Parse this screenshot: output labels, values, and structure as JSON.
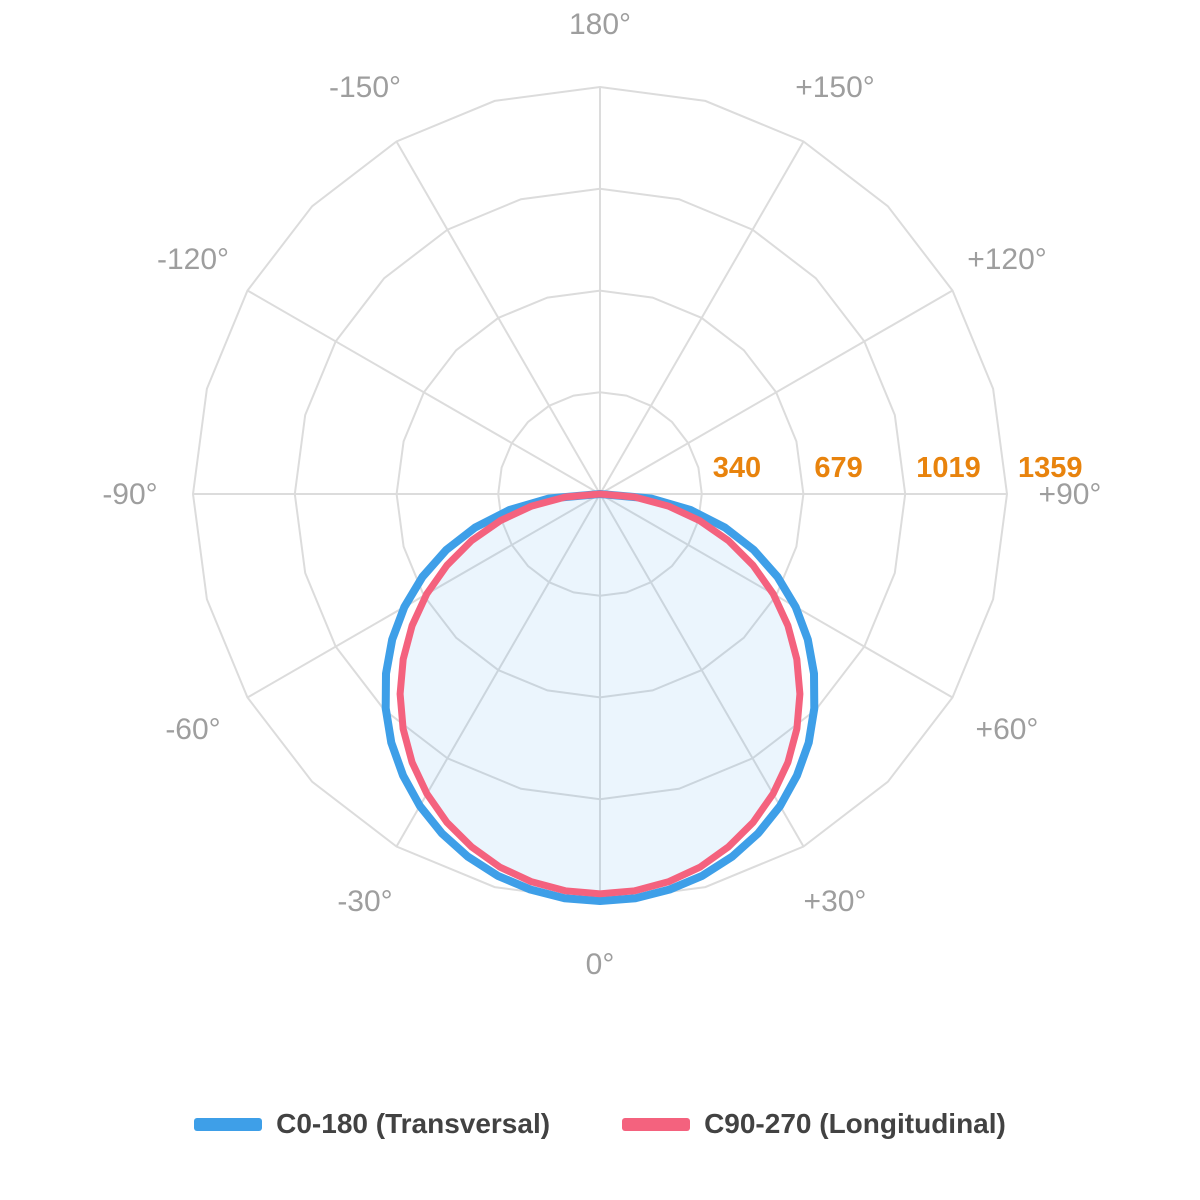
{
  "colors": {
    "background": "#FFFFFF",
    "angle_labels": "#9E9E9E",
    "radial_labels": "#E8830D",
    "legend_text": "#424242",
    "grid": "#DCDCDC"
  },
  "chart_data": {
    "type": "line-polar",
    "title": "",
    "orientation": {
      "zero_angle": "bottom",
      "positive_side": "right",
      "grid_on": true
    },
    "angle_axis": {
      "grid_step_deg": 30,
      "labels": [
        {
          "angle": 0,
          "text": "0°"
        },
        {
          "angle": 30,
          "text": "+30°"
        },
        {
          "angle": 60,
          "text": "+60°"
        },
        {
          "angle": 90,
          "text": "+90°"
        },
        {
          "angle": 120,
          "text": "+120°"
        },
        {
          "angle": 150,
          "text": "+150°"
        },
        {
          "angle": 180,
          "text": "180°"
        },
        {
          "angle": -150,
          "text": "-150°"
        },
        {
          "angle": -120,
          "text": "-120°"
        },
        {
          "angle": -90,
          "text": "-90°"
        },
        {
          "angle": -60,
          "text": "-60°"
        },
        {
          "angle": -30,
          "text": "-30°"
        }
      ]
    },
    "radial_axis": {
      "max": 1359,
      "ticks": [
        340,
        679,
        1019,
        1359
      ],
      "tick_color": "#E8830D"
    },
    "grid": {
      "color": "#DCDCDC",
      "rings": 4,
      "spokes": 12
    },
    "series": [
      {
        "name": "C0-180 (Transversal)",
        "color": "#3E9FE8",
        "stroke_width": 8,
        "symmetric": true,
        "angles_deg": [
          0,
          5,
          10,
          15,
          20,
          25,
          30,
          35,
          40,
          45,
          50,
          55,
          60,
          65,
          70,
          75,
          80,
          85,
          90
        ],
        "values": [
          1359,
          1355,
          1341,
          1320,
          1289,
          1250,
          1203,
          1147,
          1084,
          1012,
          933,
          847,
          754,
          654,
          546,
          431,
          307,
          171,
          0
        ]
      },
      {
        "name": "C90-270 (Longitudinal)",
        "color": "#F4627E",
        "stroke_width": 7,
        "symmetric": true,
        "fill_color": "#3E9FE8",
        "fill_opacity": 0.1,
        "angles_deg": [
          0,
          5,
          10,
          15,
          20,
          25,
          30,
          35,
          40,
          45,
          50,
          55,
          60,
          65,
          70,
          75,
          80,
          85,
          90
        ],
        "values": [
          1335,
          1330,
          1315,
          1290,
          1254,
          1210,
          1156,
          1094,
          1023,
          944,
          858,
          766,
          668,
          564,
          457,
          345,
          232,
          116,
          0
        ]
      }
    ]
  },
  "legend": {
    "position": "bottom",
    "items": [
      {
        "label": "C0-180 (Transversal)",
        "color": "#3E9FE8"
      },
      {
        "label": "C90-270 (Longitudinal)",
        "color": "#F4627E"
      }
    ]
  }
}
